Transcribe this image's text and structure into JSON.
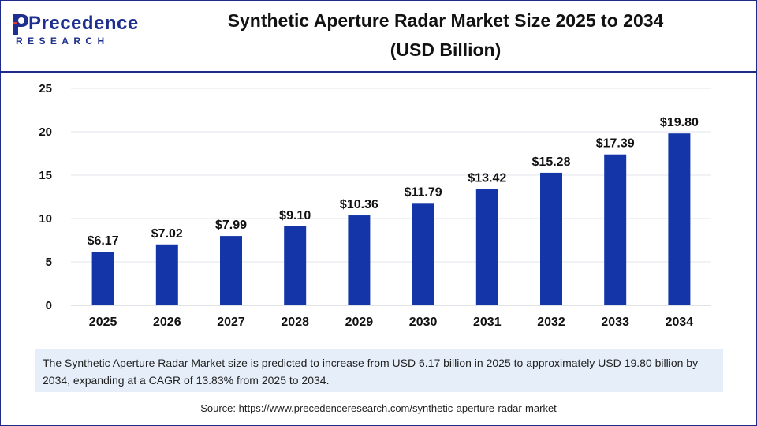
{
  "logo": {
    "word": "Precedence",
    "sub": "RESEARCH"
  },
  "title": {
    "line1": "Synthetic Aperture Radar Market Size 2025 to 2034",
    "line2": "(USD Billion)"
  },
  "colors": {
    "bar": "#1335a8",
    "frame": "#1d2a8a",
    "summary_bg": "#e6eef9"
  },
  "chart_data": {
    "type": "bar",
    "categories": [
      "2025",
      "2026",
      "2027",
      "2028",
      "2029",
      "2030",
      "2031",
      "2032",
      "2033",
      "2034"
    ],
    "values": [
      6.17,
      7.02,
      7.99,
      9.1,
      10.36,
      11.79,
      13.42,
      15.28,
      17.39,
      19.8
    ],
    "value_labels": [
      "$6.17",
      "$7.02",
      "$7.99",
      "$9.10",
      "$10.36",
      "$11.79",
      "$13.42",
      "$15.28",
      "$17.39",
      "$19.80"
    ],
    "yticks": [
      0,
      5,
      10,
      15,
      20,
      25
    ],
    "ylim": [
      0,
      25
    ],
    "grid": true,
    "legend": "none",
    "title": "Synthetic Aperture Radar Market Size 2025 to 2034 (USD Billion)"
  },
  "summary": "The Synthetic Aperture Radar Market size is predicted to increase from USD 6.17 billion in 2025 to approximately USD 19.80 billion by 2034, expanding at a CAGR of 13.83% from 2025 to 2034.",
  "source": "Source: https://www.precedenceresearch.com/synthetic-aperture-radar-market"
}
